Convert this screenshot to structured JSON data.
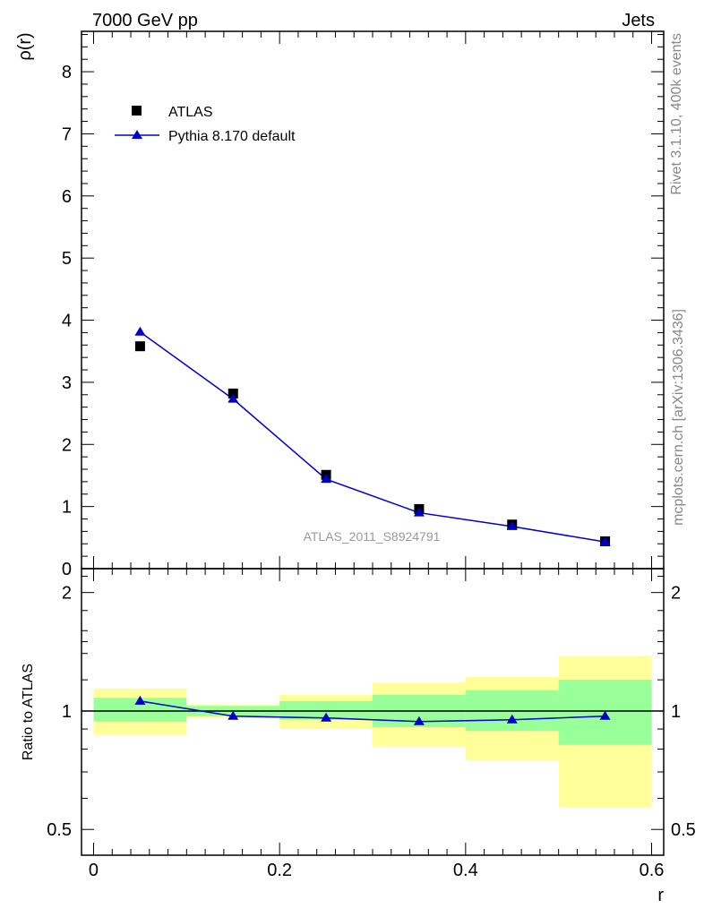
{
  "header": {
    "left": "7000 GeV pp",
    "right": "Jets"
  },
  "side_labels": {
    "rivet": "Rivet 3.1.10,  400k events",
    "mcplots": "mcplots.cern.ch [arXiv:1306.3436]"
  },
  "analysis_id": "ATLAS_2011_S8924791",
  "colors": {
    "data": "#000000",
    "mc": "#0000cc",
    "band_inner": "#99ff99",
    "band_outer": "#ffff99"
  },
  "chart_data": [
    {
      "type": "scatter",
      "panel": "main",
      "ylabel": "ρ(r)",
      "xlim": [
        -0.013,
        0.613
      ],
      "ylim": [
        0,
        8.65
      ],
      "yticks": [
        0,
        1,
        2,
        3,
        4,
        5,
        6,
        7,
        8
      ],
      "legend": {
        "placement": "top-left",
        "entries": [
          "ATLAS",
          "Pythia 8.170 default"
        ]
      },
      "series": [
        {
          "name": "ATLAS",
          "marker": "square",
          "x": [
            0.05,
            0.15,
            0.25,
            0.35,
            0.45,
            0.55
          ],
          "y": [
            3.58,
            2.82,
            1.51,
            0.96,
            0.71,
            0.44
          ]
        },
        {
          "name": "Pythia 8.170 default",
          "marker": "triangle",
          "line": true,
          "x": [
            0.05,
            0.15,
            0.25,
            0.35,
            0.45,
            0.55
          ],
          "y": [
            3.81,
            2.73,
            1.44,
            0.9,
            0.68,
            0.43
          ]
        }
      ]
    },
    {
      "type": "line",
      "panel": "ratio",
      "ylabel": "Ratio to ATLAS",
      "xlabel": "r",
      "xlim": [
        -0.013,
        0.613
      ],
      "ylim": [
        0.43,
        2.3
      ],
      "log_y": true,
      "yticks": [
        0.5,
        1,
        2
      ],
      "xticks": [
        0,
        0.2,
        0.4,
        0.6
      ],
      "reference_line": 1,
      "bins": [
        {
          "x_low": 0.0,
          "x_high": 0.1,
          "inner_low": 0.94,
          "inner_high": 1.08,
          "outer_low": 0.87,
          "outer_high": 1.14
        },
        {
          "x_low": 0.1,
          "x_high": 0.2,
          "inner_low": 0.97,
          "inner_high": 1.03,
          "outer_low": 0.96,
          "outer_high": 1.04
        },
        {
          "x_low": 0.2,
          "x_high": 0.3,
          "inner_low": 0.95,
          "inner_high": 1.06,
          "outer_low": 0.9,
          "outer_high": 1.1
        },
        {
          "x_low": 0.3,
          "x_high": 0.4,
          "inner_low": 0.91,
          "inner_high": 1.1,
          "outer_low": 0.81,
          "outer_high": 1.18
        },
        {
          "x_low": 0.4,
          "x_high": 0.5,
          "inner_low": 0.89,
          "inner_high": 1.13,
          "outer_low": 0.75,
          "outer_high": 1.22
        },
        {
          "x_low": 0.5,
          "x_high": 0.6,
          "inner_low": 0.82,
          "inner_high": 1.2,
          "outer_low": 0.57,
          "outer_high": 1.38
        }
      ],
      "series": [
        {
          "name": "Pythia 8.170 default",
          "marker": "triangle",
          "x": [
            0.05,
            0.15,
            0.25,
            0.35,
            0.45,
            0.55
          ],
          "y": [
            1.06,
            0.97,
            0.96,
            0.94,
            0.95,
            0.97
          ]
        }
      ]
    }
  ]
}
